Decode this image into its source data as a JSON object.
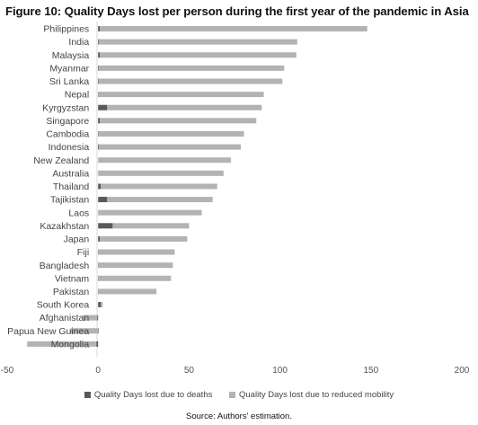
{
  "chart_data": {
    "type": "bar",
    "orientation": "horizontal",
    "stacked": true,
    "title": "Figure 10: Quality Days lost per person during the first year of the pandemic in Asia",
    "categories": [
      "Philippines",
      "India",
      "Malaysia",
      "Myanmar",
      "Sri Lanka",
      "Nepal",
      "Kyrgyzstan",
      "Singapore",
      "Cambodia",
      "Indonesia",
      "New Zealand",
      "Australia",
      "Thailand",
      "Tajikistan",
      "Laos",
      "Kazakhstan",
      "Japan",
      "Fiji",
      "Bangladesh",
      "Vietnam",
      "Pakistan",
      "South Korea",
      "Afghanistan",
      "Papua New Guinea",
      "Mongolia"
    ],
    "series": [
      {
        "name": "Quality Days lost due to deaths",
        "color": "#595959",
        "values": [
          1,
          0.5,
          1,
          0.3,
          0.3,
          0.1,
          5,
          1,
          0.2,
          0.5,
          0,
          0,
          1.5,
          5,
          0,
          8,
          1,
          0.1,
          0.1,
          0.1,
          0.1,
          1.5,
          -0.5,
          -0.2,
          -1
        ]
      },
      {
        "name": "Quality Days lost due to reduced mobility",
        "color": "#b3b3b3",
        "values": [
          147,
          109,
          108,
          102,
          101,
          91,
          85,
          86,
          80,
          78,
          73,
          69,
          64,
          58,
          57,
          42,
          48,
          42,
          41,
          40,
          32,
          1,
          -8,
          -15,
          -38
        ]
      }
    ],
    "xlim": [
      -50,
      200
    ],
    "xticks": [
      -50,
      0,
      50,
      100,
      150,
      200
    ],
    "grid": false,
    "legend": "bottom",
    "source": "Source: Authors' estimation."
  }
}
